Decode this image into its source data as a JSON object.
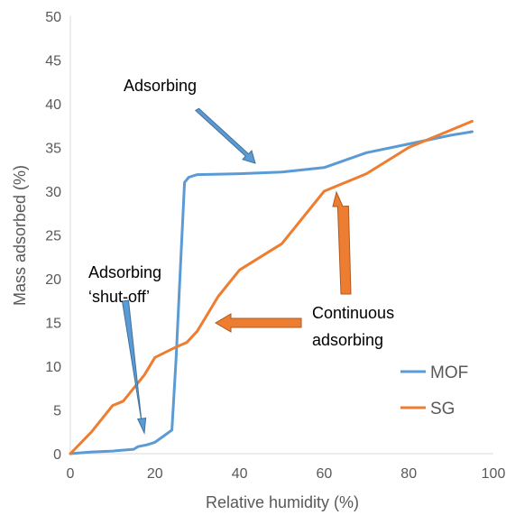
{
  "chart_data": {
    "type": "line",
    "xlabel": "Relative humidity (%)",
    "ylabel": "Mass  adsorbed (%)",
    "xlim": [
      0,
      100
    ],
    "ylim": [
      0,
      50
    ],
    "xticks": [
      "0",
      "20",
      "40",
      "60",
      "80",
      "100"
    ],
    "yticks": [
      "0",
      "5",
      "10",
      "15",
      "20",
      "25",
      "30",
      "35",
      "40",
      "45",
      "50"
    ],
    "grid": false,
    "legend_position": "bottom-right",
    "series": [
      {
        "name": "MOF",
        "color": "#5B9BD5",
        "x": [
          0,
          5,
          10,
          15,
          16,
          18,
          20,
          22,
          24,
          25,
          26,
          27,
          28,
          30,
          40,
          50,
          60,
          70,
          80,
          90,
          95
        ],
        "y": [
          0,
          0.2,
          0.3,
          0.5,
          0.8,
          1.0,
          1.3,
          2.0,
          2.7,
          11.0,
          21.0,
          31.0,
          31.6,
          31.9,
          32.0,
          32.2,
          32.7,
          34.4,
          35.4,
          36.4,
          36.8
        ]
      },
      {
        "name": "SG",
        "color": "#ED7D31",
        "x": [
          0,
          5,
          10,
          12.5,
          15,
          17.5,
          20,
          25,
          27.5,
          30,
          35,
          40,
          50,
          60,
          70,
          80,
          90,
          95
        ],
        "y": [
          0,
          2.5,
          5.5,
          6.0,
          7.5,
          9.0,
          11.0,
          12.2,
          12.7,
          14.0,
          18.0,
          21.0,
          24.0,
          30.0,
          32.0,
          35.0,
          37.0,
          38.0
        ]
      }
    ],
    "annotations": [
      {
        "id": "adsorbing",
        "text": "Adsorbing"
      },
      {
        "id": "shutoff",
        "lines": [
          "Adsorbing",
          "‘shut-off’"
        ]
      },
      {
        "id": "continuous",
        "lines": [
          "Continuous",
          "adsorbing"
        ]
      }
    ]
  }
}
